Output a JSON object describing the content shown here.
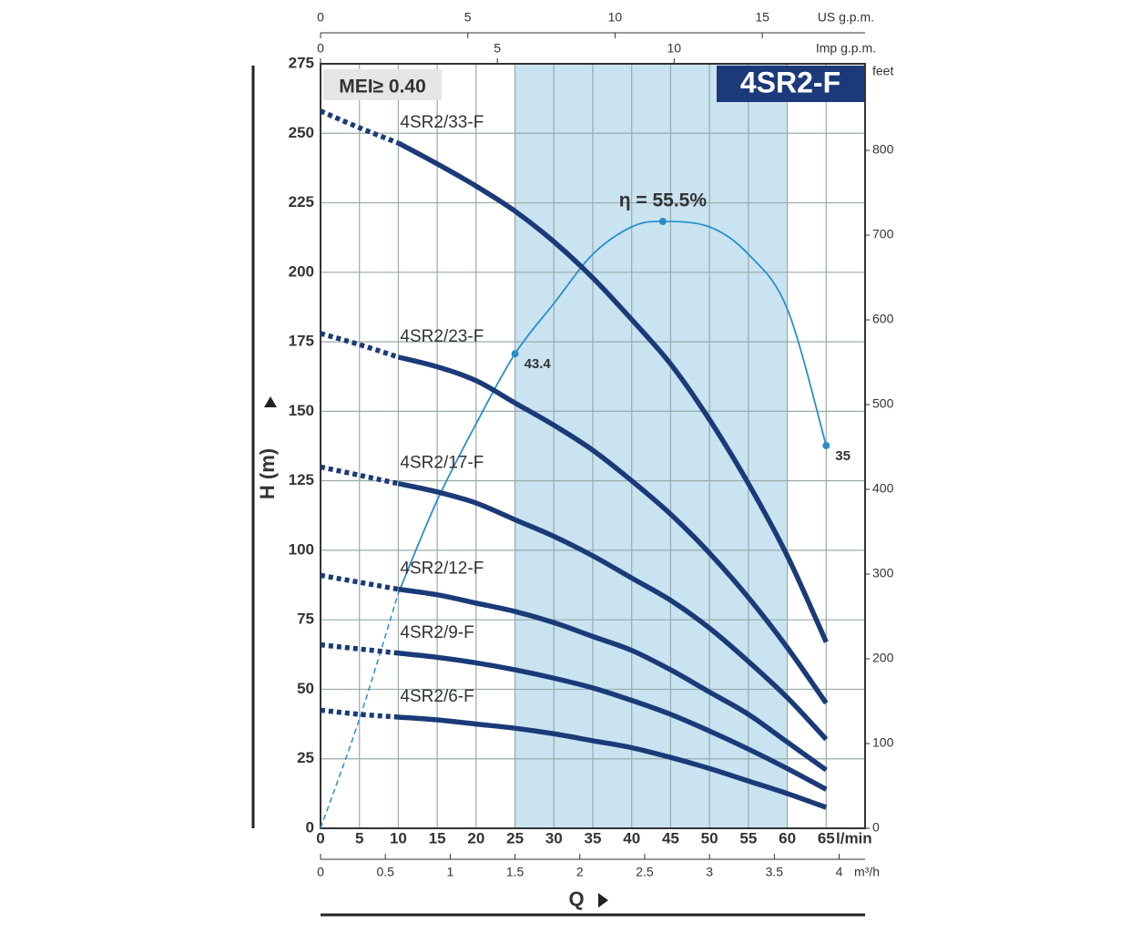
{
  "chart_data": {
    "type": "line",
    "title": "4SR2-F",
    "badge": "MEI≥ 0.40",
    "x_label": "Q",
    "x_unit": "l/min",
    "y_label": "H (m)",
    "y2_label": "feet",
    "xlim": [
      0,
      70
    ],
    "xticks": [
      0,
      5,
      10,
      15,
      20,
      25,
      30,
      35,
      40,
      45,
      50,
      55,
      60,
      65
    ],
    "ylim": [
      0,
      275
    ],
    "yticks": [
      0,
      25,
      50,
      75,
      100,
      125,
      150,
      175,
      200,
      225,
      250,
      275
    ],
    "y2lim": [
      0,
      902.2
    ],
    "y2ticks": [
      0,
      100,
      200,
      300,
      400,
      500,
      600,
      700,
      800
    ],
    "grid": true,
    "top_axes": [
      {
        "label": "US g.p.m.",
        "lim": [
          0,
          18.49
        ],
        "ticks": [
          0,
          5,
          10,
          15
        ]
      },
      {
        "label": "Imp g.p.m.",
        "lim": [
          0,
          15.4
        ],
        "ticks": [
          0,
          5,
          10
        ]
      }
    ],
    "bottom_axis": {
      "label": "m³/h",
      "lim": [
        0,
        4.2
      ],
      "ticks": [
        0,
        0.5,
        1,
        1.5,
        2,
        2.5,
        3,
        3.5,
        4
      ]
    },
    "shaded_range": [
      25,
      60
    ],
    "dashed_until": 10,
    "x": [
      0,
      5,
      10,
      15,
      20,
      25,
      30,
      35,
      40,
      45,
      50,
      55,
      60,
      65
    ],
    "series": [
      {
        "name": "4SR2/33-F",
        "color": "#1b3a78",
        "values": [
          258,
          252,
          246.5,
          239,
          231,
          222,
          211,
          198,
          183,
          167,
          147,
          124,
          98,
          67
        ]
      },
      {
        "name": "4SR2/23-F",
        "color": "#1b3a78",
        "values": [
          178,
          174,
          169.5,
          166,
          161,
          153,
          145,
          136,
          125,
          113,
          99,
          83,
          65,
          45
        ]
      },
      {
        "name": "4SR2/17-F",
        "color": "#1b3a78",
        "values": [
          130,
          127,
          124,
          121,
          117,
          111,
          105,
          98,
          90,
          82,
          72,
          60,
          47,
          32
        ]
      },
      {
        "name": "4SR2/12-F",
        "color": "#1b3a78",
        "values": [
          91,
          88.5,
          86,
          84,
          81,
          78,
          74,
          69,
          64,
          57,
          49,
          41,
          31,
          21
        ]
      },
      {
        "name": "4SR2/9-F",
        "color": "#1b3a78",
        "values": [
          66,
          64.5,
          63,
          61.5,
          59.5,
          57,
          54,
          50.5,
          46,
          41,
          35,
          28.5,
          21.5,
          14
        ]
      },
      {
        "name": "4SR2/6-F",
        "color": "#1b3a78",
        "values": [
          42.5,
          41,
          40,
          39,
          37.5,
          36,
          34,
          31.5,
          29,
          25.5,
          21.5,
          17,
          12.5,
          7.5
        ]
      }
    ],
    "efficiency": {
      "color": "#2a8fc9",
      "x": [
        0,
        5,
        10,
        15,
        20,
        25,
        30,
        35,
        40,
        44,
        50,
        55,
        60,
        65
      ],
      "values": [
        0,
        10,
        21.5,
        30,
        37,
        43.4,
        48,
        52.5,
        55,
        55.5,
        55,
        52.5,
        47.5,
        35
      ],
      "points": {
        "x": [
          25,
          44,
          65
        ],
        "values": [
          43.4,
          55.5,
          35
        ],
        "value_labels": [
          "43.4",
          "η = 55.5%",
          "35"
        ]
      }
    }
  }
}
